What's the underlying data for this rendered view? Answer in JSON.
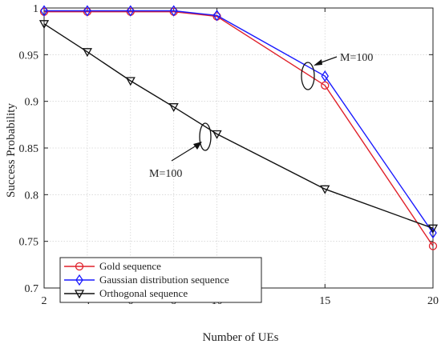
{
  "chart_data": {
    "type": "line",
    "xlabel": "Number of UEs",
    "ylabel": "Success Probability",
    "x": [
      2,
      4,
      6,
      8,
      10,
      15,
      20
    ],
    "xlim": [
      2,
      20
    ],
    "ylim": [
      0.7,
      1
    ],
    "x_ticks": [
      "2",
      "4",
      "6",
      "8",
      "10",
      "15",
      "20"
    ],
    "y_ticks": [
      "0.7",
      "0.75",
      "0.8",
      "0.85",
      "0.9",
      "0.95",
      "1"
    ],
    "grid": true,
    "legend_position": "bottom-left",
    "series": [
      {
        "name": "Gold sequence",
        "values": [
          0.996,
          0.996,
          0.996,
          0.996,
          0.991,
          0.917,
          0.745
        ],
        "color": "#e0202a",
        "marker": "circle"
      },
      {
        "name": "Gaussian distribution sequence",
        "values": [
          0.997,
          0.997,
          0.997,
          0.997,
          0.992,
          0.927,
          0.759
        ],
        "color": "#1a1aff",
        "marker": "diamond"
      },
      {
        "name": "Orthogonal sequence",
        "values": [
          0.983,
          0.953,
          0.922,
          0.894,
          0.865,
          0.806,
          0.764
        ],
        "color": "#111111",
        "marker": "triangle-down"
      }
    ],
    "annotations": [
      {
        "text": "M=100"
      },
      {
        "text": "M=100"
      }
    ]
  }
}
